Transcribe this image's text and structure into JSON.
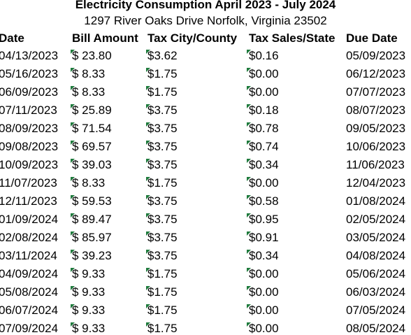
{
  "header": {
    "title": "Electricity Consumption April 2023 - July 2024",
    "subtitle": "1297 River Oaks Drive Norfolk, Virginia 23502"
  },
  "table": {
    "columns": [
      "Date",
      "Bill Amount",
      "Tax City/County",
      "Tax Sales/State",
      "Due Date"
    ],
    "rows": [
      [
        "04/13/2023",
        "$ 23.80",
        "$3.62",
        "$0.16",
        "05/09/2023"
      ],
      [
        "05/16/2023",
        "$ 8.33",
        "$1.75",
        "$0.00",
        "06/12/2023"
      ],
      [
        "06/09/2023",
        "$ 8.33",
        "$1.75",
        "$0.00",
        "07/07/2023"
      ],
      [
        "07/11/2023",
        "$ 25.89",
        "$3.75",
        "$0.18",
        "08/07/2023"
      ],
      [
        "08/09/2023",
        "$ 71.54",
        "$3.75",
        "$0.78",
        "09/05/2023"
      ],
      [
        "09/08/2023",
        "$ 69.57",
        "$3.75",
        "$0.74",
        "10/06/2023"
      ],
      [
        "10/09/2023",
        "$ 39.03",
        "$3.75",
        "$0.34",
        "11/06/2023"
      ],
      [
        "11/07/2023",
        "$ 8.33",
        "$1.75",
        "$0.00",
        "12/04/2023"
      ],
      [
        "12/11/2023",
        "$ 59.53",
        "$3.75",
        "$0.58",
        "01/08/2024"
      ],
      [
        "01/09/2024",
        "$ 89.47",
        "$3.75",
        "$0.95",
        "02/05/2024"
      ],
      [
        "02/08/2024",
        "$ 85.97",
        "$3.75",
        "$0.91",
        "03/05/2024"
      ],
      [
        "03/11/2024",
        "$ 39.23",
        "$3.75",
        "$0.34",
        "04/08/2024"
      ],
      [
        "04/09/2024",
        "$ 9.33",
        "$1.75",
        "$0.00",
        "05/06/2024"
      ],
      [
        "05/08/2024",
        "$ 9.33",
        "$1.75",
        "$0.00",
        "06/03/2024"
      ],
      [
        "06/07/2024",
        "$ 9.33",
        "$1.75",
        "$0.00",
        "07/05/2024"
      ],
      [
        "07/09/2024",
        "$ 9.33",
        "$1.75",
        "$0.00",
        "08/05/2024"
      ]
    ]
  }
}
